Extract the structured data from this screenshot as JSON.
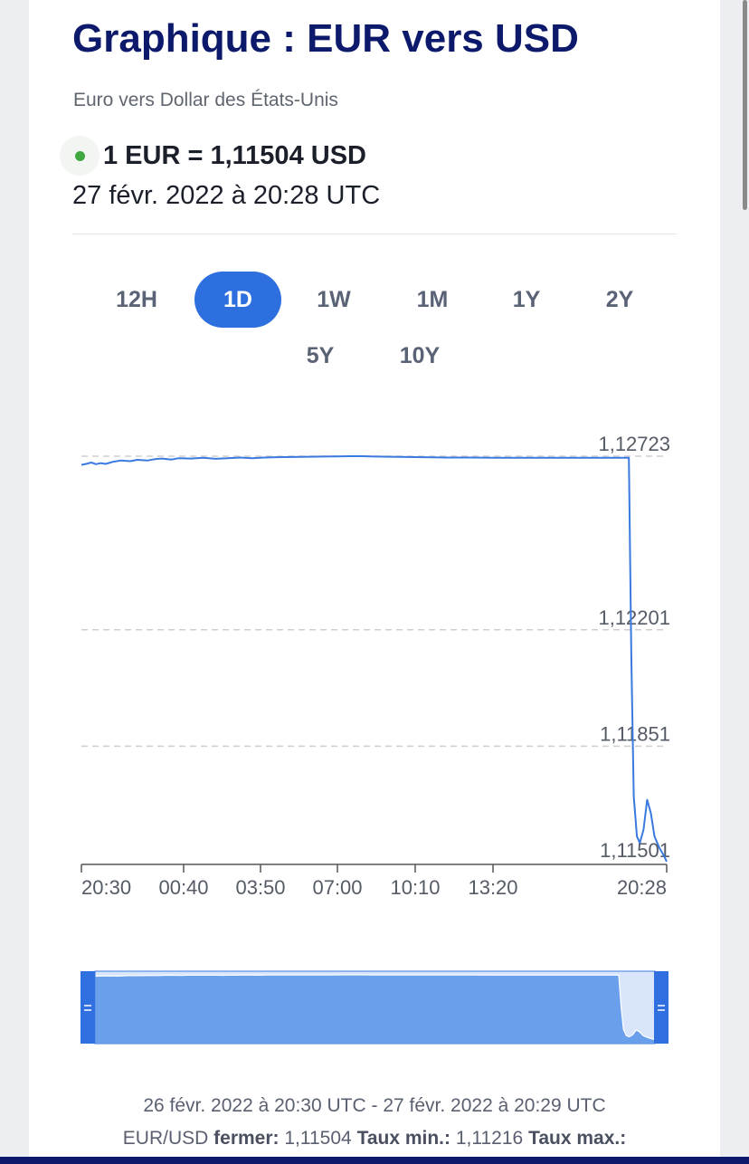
{
  "header": {
    "title": "Graphique : EUR vers USD",
    "subtitle": "Euro vers Dollar des États-Unis",
    "rate": "1 EUR = 1,11504 USD",
    "timestamp": "27 févr. 2022 à 20:28 UTC"
  },
  "periods": [
    {
      "label": "12H",
      "active": false
    },
    {
      "label": "1D",
      "active": true
    },
    {
      "label": "1W",
      "active": false
    },
    {
      "label": "1M",
      "active": false
    },
    {
      "label": "1Y",
      "active": false
    },
    {
      "label": "2Y",
      "active": false
    },
    {
      "label": "5Y",
      "active": false
    },
    {
      "label": "10Y",
      "active": false
    }
  ],
  "chart_data": {
    "type": "line",
    "y_ticks": [
      "1,12723",
      "1,12201",
      "1,11851",
      "1,11501"
    ],
    "x_ticks": [
      "20:30",
      "00:40",
      "03:50",
      "07:00",
      "10:10",
      "13:20",
      "20:28"
    ],
    "ylim": [
      1.11501,
      1.12723
    ],
    "x_range_hours": [
      0,
      24
    ],
    "grid": "horizontal-dashed",
    "series": [
      {
        "color": "#3a7ae0",
        "points": [
          [
            0.0,
            1.12697
          ],
          [
            0.2,
            1.127
          ],
          [
            0.4,
            1.12704
          ],
          [
            0.6,
            1.12699
          ],
          [
            0.8,
            1.12702
          ],
          [
            1.0,
            1.127
          ],
          [
            1.3,
            1.12706
          ],
          [
            1.6,
            1.1271
          ],
          [
            2.0,
            1.12708
          ],
          [
            2.3,
            1.12712
          ],
          [
            2.7,
            1.1271
          ],
          [
            3.0,
            1.12714
          ],
          [
            3.3,
            1.12716
          ],
          [
            3.7,
            1.12713
          ],
          [
            4.0,
            1.12717
          ],
          [
            4.5,
            1.12716
          ],
          [
            5.0,
            1.12718
          ],
          [
            5.5,
            1.12715
          ],
          [
            6.0,
            1.12717
          ],
          [
            6.5,
            1.12719
          ],
          [
            7.0,
            1.12717
          ],
          [
            7.5,
            1.12719
          ],
          [
            8.0,
            1.1272
          ],
          [
            9.0,
            1.12721
          ],
          [
            10.0,
            1.12722
          ],
          [
            11.0,
            1.12723
          ],
          [
            11.5,
            1.12723
          ],
          [
            12.0,
            1.12722
          ],
          [
            13.0,
            1.12721
          ],
          [
            14.0,
            1.1272
          ],
          [
            15.0,
            1.12719
          ],
          [
            16.0,
            1.12719
          ],
          [
            17.0,
            1.12718
          ],
          [
            18.0,
            1.12718
          ],
          [
            19.0,
            1.12718
          ],
          [
            20.0,
            1.12718
          ],
          [
            21.0,
            1.12718
          ],
          [
            22.0,
            1.12718
          ],
          [
            22.45,
            1.12718
          ],
          [
            22.55,
            1.12123
          ],
          [
            22.65,
            1.117
          ],
          [
            22.78,
            1.1158
          ],
          [
            22.9,
            1.1156
          ],
          [
            23.05,
            1.116
          ],
          [
            23.2,
            1.1169
          ],
          [
            23.35,
            1.1165
          ],
          [
            23.5,
            1.1158
          ],
          [
            23.7,
            1.11545
          ],
          [
            23.9,
            1.1152
          ],
          [
            24.0,
            1.11504
          ]
        ]
      }
    ]
  },
  "footer": {
    "range": "26 févr. 2022 à 20:30 UTC - 27 févr. 2022 à 20:29 UTC",
    "pair": "EUR/USD",
    "close_label": "fermer:",
    "close_value": "1,11504",
    "min_label": "Taux min.:",
    "min_value": "1,11216",
    "max_label": "Taux max.:"
  }
}
